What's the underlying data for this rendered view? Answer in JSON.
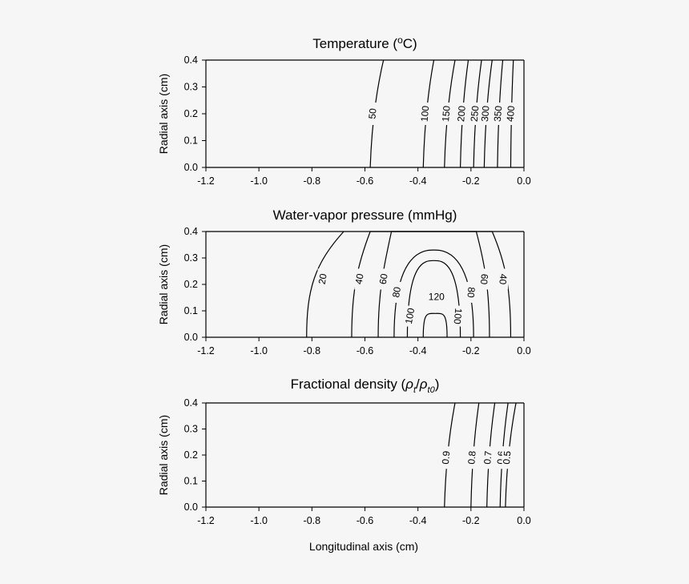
{
  "figure": {
    "background": "#f6f6f6",
    "line_color": "#000000",
    "x_axis_label": "Longitudinal axis (cm)"
  },
  "chart_data": [
    {
      "type": "contour",
      "id": "temperature",
      "title_parts": [
        "Temperature (",
        "o",
        "C)"
      ],
      "ylabel": "Radial axis (cm)",
      "xlim": [
        -1.2,
        0.0
      ],
      "ylim": [
        0.0,
        0.4
      ],
      "x_ticks": [
        -1.2,
        -1.0,
        -0.8,
        -0.6,
        -0.4,
        -0.2,
        0.0
      ],
      "x_tick_labels": [
        "-1.2",
        "-1.0",
        "-0.8",
        "-0.6",
        "-0.4",
        "-0.2",
        "0.0"
      ],
      "y_ticks": [
        0.0,
        0.1,
        0.2,
        0.3,
        0.4
      ],
      "y_tick_labels": [
        "0.0",
        "0.1",
        "0.2",
        "0.3",
        "0.4"
      ],
      "grid": false,
      "contours": [
        {
          "label": "50",
          "x_at_r0": -0.58,
          "x_at_rmax": -0.53,
          "label_r": 0.2
        },
        {
          "label": "100",
          "x_at_r0": -0.38,
          "x_at_rmax": -0.34,
          "label_r": 0.2
        },
        {
          "label": "150",
          "x_at_r0": -0.3,
          "x_at_rmax": -0.26,
          "label_r": 0.2
        },
        {
          "label": "200",
          "x_at_r0": -0.24,
          "x_at_rmax": -0.21,
          "label_r": 0.2
        },
        {
          "label": "250",
          "x_at_r0": -0.19,
          "x_at_rmax": -0.16,
          "label_r": 0.2
        },
        {
          "label": "300",
          "x_at_r0": -0.15,
          "x_at_rmax": -0.12,
          "label_r": 0.2
        },
        {
          "label": "350",
          "x_at_r0": -0.1,
          "x_at_rmax": -0.08,
          "label_r": 0.2
        },
        {
          "label": "400",
          "x_at_r0": -0.05,
          "x_at_rmax": -0.04,
          "label_r": 0.2
        }
      ]
    },
    {
      "type": "contour",
      "id": "water-vapor",
      "title": "Water-vapor pressure (mmHg)",
      "ylabel": "Radial axis (cm)",
      "xlim": [
        -1.2,
        0.0
      ],
      "ylim": [
        0.0,
        0.4
      ],
      "x_ticks": [
        -1.2,
        -1.0,
        -0.8,
        -0.6,
        -0.4,
        -0.2,
        0.0
      ],
      "x_tick_labels": [
        "-1.2",
        "-1.0",
        "-0.8",
        "-0.6",
        "-0.4",
        "-0.2",
        "0.0"
      ],
      "y_ticks": [
        0.0,
        0.1,
        0.2,
        0.3,
        0.4
      ],
      "y_tick_labels": [
        "0.0",
        "0.1",
        "0.2",
        "0.3",
        "0.4"
      ],
      "grid": false,
      "peak": {
        "label": "120",
        "x": -0.33,
        "r": 0.15
      },
      "contours": [
        {
          "label": "20",
          "left_x0": -0.82,
          "left_xmax": -0.68,
          "right_x0": null,
          "right_xmax": null,
          "top_r": null,
          "label_r": 0.22,
          "label_side": "left"
        },
        {
          "label": "40",
          "left_x0": -0.65,
          "left_xmax": -0.58,
          "right_x0": -0.05,
          "right_xmax": -0.12,
          "top_r": null,
          "label_r": 0.22,
          "label_side": "both"
        },
        {
          "label": "60",
          "left_x0": -0.55,
          "left_xmax": -0.5,
          "right_x0": -0.13,
          "right_xmax": -0.18,
          "top_r": null,
          "label_r": 0.22,
          "label_side": "both"
        },
        {
          "label": "80",
          "left_x0": -0.49,
          "left_xmax": null,
          "right_x0": -0.19,
          "right_xmax": null,
          "top_r": 0.33,
          "label_r": 0.17,
          "label_side": "both"
        },
        {
          "label": "100",
          "left_x0": -0.44,
          "left_xmax": null,
          "right_x0": -0.24,
          "right_xmax": null,
          "top_r": 0.29,
          "label_r": 0.08,
          "label_side": "both"
        },
        {
          "label": "120",
          "left_x0": -0.38,
          "left_xmax": null,
          "right_x0": -0.29,
          "right_xmax": null,
          "top_r": 0.09,
          "label_r": null,
          "label_side": "none"
        }
      ]
    },
    {
      "type": "contour",
      "id": "fractional-density",
      "title_parts": [
        "Fractional density (",
        "ρ",
        "t",
        "/",
        "ρ",
        "t0",
        ")"
      ],
      "ylabel": "Radial axis (cm)",
      "xlabel": "Longitudinal axis (cm)",
      "xlim": [
        -1.2,
        0.0
      ],
      "ylim": [
        0.0,
        0.4
      ],
      "x_ticks": [
        -1.2,
        -1.0,
        -0.8,
        -0.6,
        -0.4,
        -0.2,
        0.0
      ],
      "x_tick_labels": [
        "-1.2",
        "-1.0",
        "-0.8",
        "-0.6",
        "-0.4",
        "-0.2",
        "0.0"
      ],
      "y_ticks": [
        0.0,
        0.1,
        0.2,
        0.3,
        0.4
      ],
      "y_tick_labels": [
        "0.0",
        "0.1",
        "0.2",
        "0.3",
        "0.4"
      ],
      "grid": false,
      "contours": [
        {
          "label": "0.9",
          "x_at_r0": -0.3,
          "x_at_rmax": -0.26,
          "label_r": 0.19
        },
        {
          "label": "0.8",
          "x_at_r0": -0.2,
          "x_at_rmax": -0.17,
          "label_r": 0.19
        },
        {
          "label": "0.7",
          "x_at_r0": -0.14,
          "x_at_rmax": -0.11,
          "label_r": 0.19
        },
        {
          "label": "0.6",
          "x_at_r0": -0.09,
          "x_at_rmax": -0.06,
          "label_r": 0.19
        },
        {
          "label": "0.5",
          "x_at_r0": -0.07,
          "x_at_rmax": -0.03,
          "label_r": 0.19
        }
      ]
    }
  ]
}
